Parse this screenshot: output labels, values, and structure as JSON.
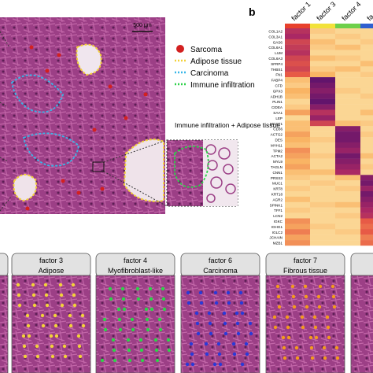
{
  "panel_a": {
    "scale_bar": "500 µm",
    "legend": [
      "Sarcoma",
      "Adipose tissue",
      "Carcinoma",
      "Immune infiltration"
    ],
    "inset_label": "Immune infiltration + Adipose tissue"
  },
  "panel_b": {
    "label": "b",
    "factors": [
      "factor 1",
      "factor 3",
      "factor 4",
      "fa"
    ],
    "genes": [
      "COL1A2",
      "COL3A1",
      "GAS6",
      "COL6A1",
      "LUM",
      "COL6A3",
      "SFRP4",
      "THBS1",
      "FN1",
      "FABP4",
      "CFD",
      "GPX3",
      "ADH1B",
      "PLIN1",
      "CIDEA",
      "SAA1",
      "LEP",
      "MGST1",
      "CD36",
      "ACTG2",
      "DES",
      "MYH11",
      "TPM2",
      "ACTA2",
      "MYL9",
      "TAGLN",
      "CNN1",
      "PRSS3",
      "MUC1",
      "KRT8",
      "KRT18",
      "AGR2",
      "SPINK1",
      "TFF1",
      "LCN2",
      "IGKC",
      "IGHG1",
      "IGLC2",
      "JCHAIN",
      "MZB1"
    ],
    "values": [
      [
        0.7,
        0.15,
        0.1,
        0.1
      ],
      [
        0.75,
        0.1,
        0.15,
        0.1
      ],
      [
        0.6,
        0.2,
        0.1,
        0.15
      ],
      [
        0.65,
        0.15,
        0.2,
        0.1
      ],
      [
        0.7,
        0.1,
        0.1,
        0.1
      ],
      [
        0.6,
        0.2,
        0.15,
        0.1
      ],
      [
        0.55,
        0.1,
        0.1,
        0.2
      ],
      [
        0.6,
        0.15,
        0.2,
        0.1
      ],
      [
        0.5,
        0.25,
        0.1,
        0.15
      ],
      [
        0.2,
        0.95,
        0.1,
        0.1
      ],
      [
        0.15,
        0.9,
        0.1,
        0.1
      ],
      [
        0.25,
        0.85,
        0.15,
        0.1
      ],
      [
        0.2,
        0.9,
        0.1,
        0.15
      ],
      [
        0.1,
        0.95,
        0.1,
        0.1
      ],
      [
        0.15,
        0.85,
        0.1,
        0.1
      ],
      [
        0.3,
        0.7,
        0.1,
        0.2
      ],
      [
        0.1,
        0.8,
        0.1,
        0.1
      ],
      [
        0.2,
        0.6,
        0.2,
        0.15
      ],
      [
        0.2,
        0.1,
        0.85,
        0.1
      ],
      [
        0.3,
        0.1,
        0.9,
        0.15
      ],
      [
        0.25,
        0.15,
        0.9,
        0.1
      ],
      [
        0.2,
        0.1,
        0.85,
        0.1
      ],
      [
        0.35,
        0.1,
        0.8,
        0.1
      ],
      [
        0.3,
        0.15,
        0.9,
        0.2
      ],
      [
        0.25,
        0.1,
        0.85,
        0.1
      ],
      [
        0.3,
        0.1,
        0.8,
        0.15
      ],
      [
        0.2,
        0.2,
        0.75,
        0.1
      ],
      [
        0.15,
        0.1,
        0.2,
        0.85
      ],
      [
        0.1,
        0.15,
        0.1,
        0.9
      ],
      [
        0.15,
        0.1,
        0.15,
        0.8
      ],
      [
        0.1,
        0.1,
        0.1,
        0.9
      ],
      [
        0.2,
        0.1,
        0.1,
        0.85
      ],
      [
        0.1,
        0.15,
        0.2,
        0.8
      ],
      [
        0.15,
        0.1,
        0.1,
        0.75
      ],
      [
        0.1,
        0.1,
        0.15,
        0.7
      ],
      [
        0.35,
        0.1,
        0.1,
        0.5
      ],
      [
        0.3,
        0.15,
        0.1,
        0.45
      ],
      [
        0.4,
        0.1,
        0.15,
        0.5
      ],
      [
        0.3,
        0.1,
        0.1,
        0.4
      ],
      [
        0.35,
        0.1,
        0.1,
        0.45
      ]
    ]
  },
  "panel_c": {
    "panels": [
      {
        "factor": "factor 3",
        "label": "Adipose"
      },
      {
        "factor": "factor 4",
        "label": "Myofibroblast-like"
      },
      {
        "factor": "factor 6",
        "label": "Carcinoma"
      },
      {
        "factor": "factor 7",
        "label": "Fibrous tissue"
      }
    ]
  }
}
